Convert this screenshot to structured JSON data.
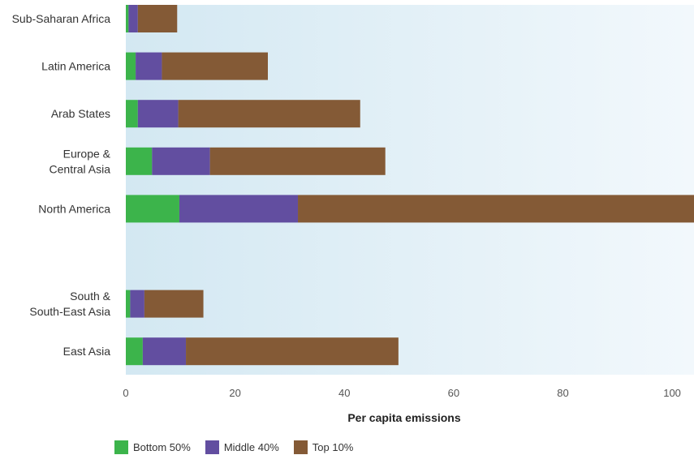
{
  "chart_data": {
    "type": "bar",
    "orientation": "horizontal",
    "stacked": true,
    "title": "",
    "xlabel": "Per capita emissions",
    "ylabel": "",
    "xlim": [
      0,
      104
    ],
    "x_ticks": [
      0,
      20,
      40,
      60,
      80,
      100
    ],
    "grid": false,
    "legend_position": "bottom-left",
    "categories": [
      "Sub-Saharan Africa",
      "Latin America",
      "Arab States",
      "Europe &\nCentral Asia",
      "North America",
      "",
      "South &\nSouth-East Asia",
      "East Asia"
    ],
    "series": [
      {
        "name": "Bottom 50%",
        "color": "#3cb44b",
        "values": [
          0.5,
          1.8,
          2.2,
          4.8,
          9.8,
          0,
          0.8,
          3.1
        ]
      },
      {
        "name": "Middle 40%",
        "color": "#624ea0",
        "values": [
          1.7,
          4.8,
          7.4,
          10.6,
          21.7,
          0,
          2.6,
          7.9
        ]
      },
      {
        "name": "Top 10%",
        "color": "#845a36",
        "values": [
          7.2,
          19.4,
          33.3,
          32.1,
          72.5,
          0,
          10.8,
          38.9
        ]
      }
    ]
  },
  "legend": {
    "items": [
      {
        "label": "Bottom 50%",
        "color": "#3cb44b"
      },
      {
        "label": "Middle 40%",
        "color": "#624ea0"
      },
      {
        "label": "Top 10%",
        "color": "#845a36"
      }
    ]
  }
}
